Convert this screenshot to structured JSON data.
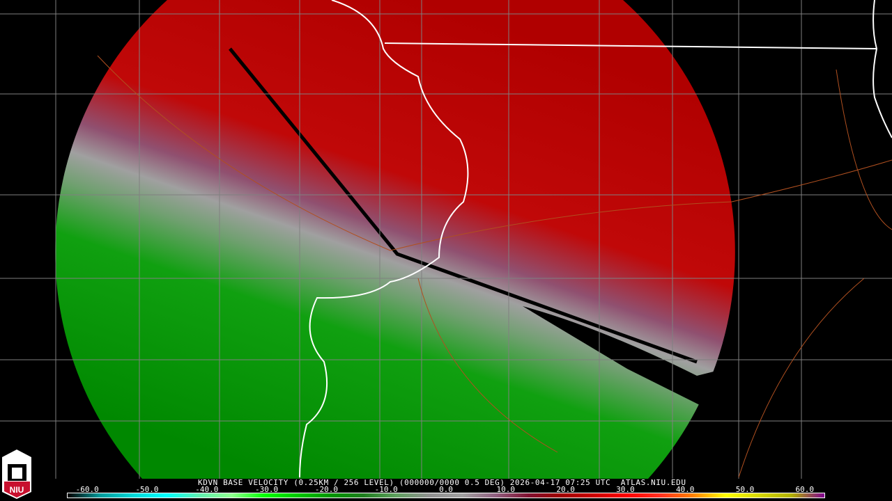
{
  "product": {
    "title": "KDVN BASE VELOCITY (0.25KM / 256 LEVEL) (000000/0000 0.5 DEG) 2026-04-17 07:25 UTC  ATLAS.NIU.EDU"
  },
  "logo": {
    "text": "NIU",
    "icon": "niu-castle-logo"
  },
  "legend": {
    "labels": [
      "-60.0",
      "-50.0",
      "-40.0",
      "-30.0",
      "-20.0",
      "-10.0",
      "0.0",
      "10.0",
      "20.0",
      "30.0",
      "40.0",
      "50.0",
      "60.0"
    ],
    "values": [
      -60,
      -50,
      -40,
      -30,
      -20,
      -10,
      0,
      10,
      20,
      30,
      40,
      50,
      60
    ],
    "colors": [
      "#000000",
      "#009c9c",
      "#00d8d8",
      "#00ffff",
      "#60f0b0",
      "#90ff90",
      "#00ff00",
      "#00c800",
      "#009600",
      "#1e7e1e",
      "#60a060",
      "#909090",
      "#a0a0a0",
      "#906080",
      "#801030",
      "#a00000",
      "#cc0000",
      "#ff0000",
      "#ff3020",
      "#ff8000",
      "#ffff00",
      "#d8d800",
      "#b0b000",
      "#800090"
    ]
  },
  "colors": {
    "inbound": "#00a000",
    "outbound": "#c00000",
    "state_border": "#ffffff",
    "county_border": "#808080",
    "highway": "#b05020"
  }
}
